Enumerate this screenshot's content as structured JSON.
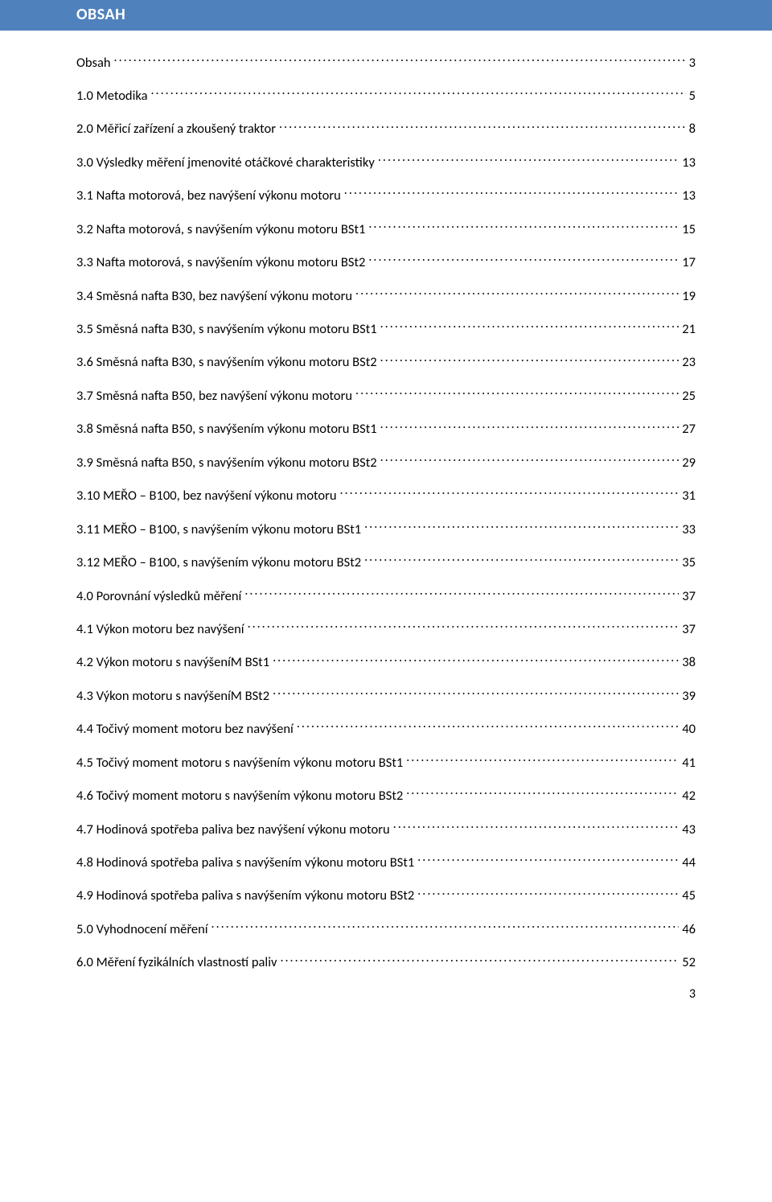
{
  "header": {
    "title": "OBSAH"
  },
  "colors": {
    "header_bg": "#4f81bd",
    "header_text": "#ffffff",
    "body_text": "#000000",
    "page_bg": "#ffffff"
  },
  "typography": {
    "body_font_family": "Calibri",
    "body_fontsize_pt": 11,
    "header_fontsize_pt": 14,
    "header_weight": "bold"
  },
  "toc": {
    "entries": [
      {
        "label": "Obsah",
        "page": "3"
      },
      {
        "label": "1.0 Metodika",
        "page": "5"
      },
      {
        "label": "2.0 Měřicí zařízení a zkoušený traktor",
        "page": "8"
      },
      {
        "label": "3.0 Výsledky měření jmenovité otáčkové charakteristiky",
        "page": "13"
      },
      {
        "label": "3.1 Nafta motorová, bez navýšení výkonu motoru",
        "page": "13"
      },
      {
        "label": "3.2 Nafta motorová, s navýšením výkonu motoru BSt1",
        "page": "15"
      },
      {
        "label": "3.3 Nafta motorová, s navýšením výkonu motoru BSt2",
        "page": "17"
      },
      {
        "label": "3.4 Směsná nafta B30, bez navýšení výkonu motoru",
        "page": "19"
      },
      {
        "label": "3.5 Směsná nafta B30, s navýšením výkonu motoru BSt1",
        "page": "21"
      },
      {
        "label": "3.6 Směsná nafta B30, s navýšením výkonu motoru BSt2",
        "page": "23"
      },
      {
        "label": "3.7 Směsná nafta B50, bez navýšení výkonu motoru",
        "page": "25"
      },
      {
        "label": "3.8 Směsná nafta B50, s navýšením výkonu motoru BSt1",
        "page": "27"
      },
      {
        "label": "3.9 Směsná nafta B50, s navýšením výkonu motoru BSt2",
        "page": "29"
      },
      {
        "label": "3.10 MEŘO – B100, bez navýšení výkonu motoru",
        "page": "31"
      },
      {
        "label": "3.11 MEŘO – B100, s navýšením výkonu motoru BSt1",
        "page": "33"
      },
      {
        "label": "3.12 MEŘO – B100, s navýšením výkonu motoru BSt2",
        "page": "35"
      },
      {
        "label": "4.0 Porovnání výsledků měření",
        "page": "37"
      },
      {
        "label": "4.1 Výkon motoru bez navýšení",
        "page": "37"
      },
      {
        "label": "4.2 Výkon motoru s navýšeníM BSt1",
        "page": "38"
      },
      {
        "label": "4.3 Výkon motoru s navýšeníM BSt2",
        "page": "39"
      },
      {
        "label": "4.4 Točivý moment motoru bez navýšení",
        "page": "40"
      },
      {
        "label": "4.5 Točivý moment motoru s navýšením výkonu motoru BSt1",
        "page": "41"
      },
      {
        "label": "4.6 Točivý moment motoru s navýšením výkonu motoru BSt2",
        "page": "42"
      },
      {
        "label": "4.7 Hodinová spotřeba paliva bez navýšení výkonu motoru",
        "page": "43"
      },
      {
        "label": "4.8 Hodinová spotřeba paliva s navýšením výkonu motoru BSt1",
        "page": "44"
      },
      {
        "label": "4.9 Hodinová spotřeba paliva s navýšením výkonu motoru BSt2",
        "page": "45"
      },
      {
        "label": "5.0 Vyhodnocení měření",
        "page": "46"
      },
      {
        "label": "6.0 Měření fyzikálních vlastností paliv",
        "page": "52"
      }
    ]
  },
  "page_number": "3"
}
